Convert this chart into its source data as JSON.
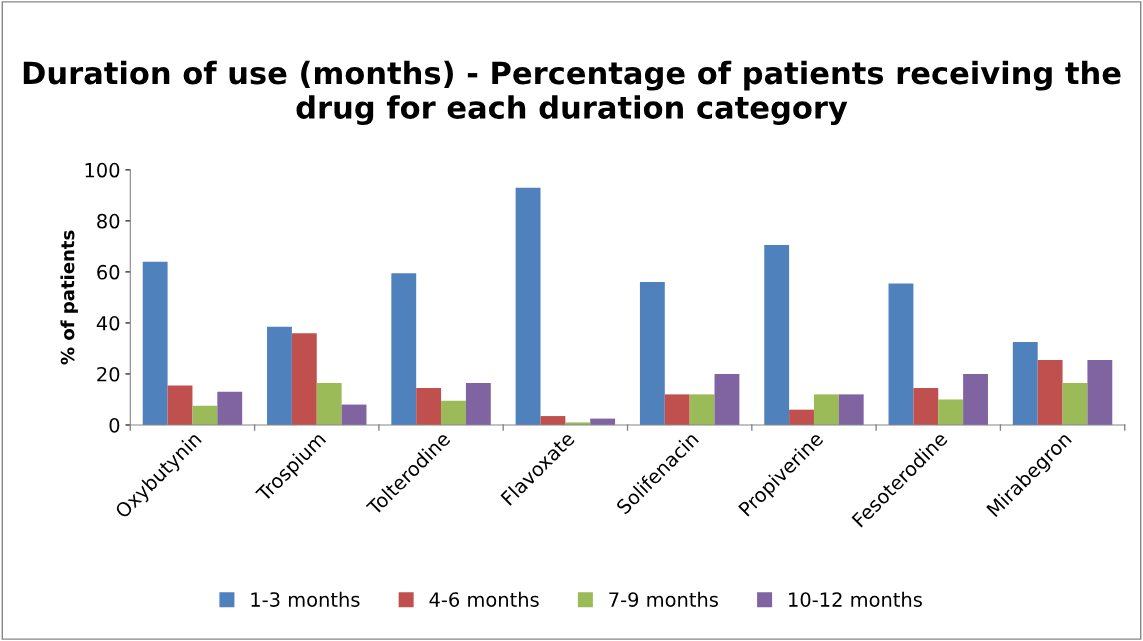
{
  "chart_data": {
    "type": "bar",
    "title": "Duration of use (months) - Percentage of patients receiving the drug for each duration category",
    "ylabel": "% of patients",
    "categories": [
      "Oxybutynin",
      "Trospium",
      "Tolterodine",
      "Flavoxate",
      "Solifenacin",
      "Propiverine",
      "Fesoterodine",
      "Mirabegron"
    ],
    "series": [
      {
        "name": "1-3 months",
        "color": "#4f81bd",
        "values": [
          64,
          38.5,
          59.5,
          93,
          56,
          70.5,
          55.5,
          32.5
        ]
      },
      {
        "name": "4-6 months",
        "color": "#c0504d",
        "values": [
          15.5,
          36,
          14.5,
          3.5,
          12,
          6,
          14.5,
          25.5
        ]
      },
      {
        "name": "7-9 months",
        "color": "#9bbb59",
        "values": [
          7.5,
          16.5,
          9.5,
          1,
          12,
          12,
          10,
          16.5
        ]
      },
      {
        "name": "10-12 months",
        "color": "#8064a2",
        "values": [
          13,
          8,
          16.5,
          2.5,
          20,
          12,
          20,
          25.5
        ]
      }
    ],
    "ylim": [
      0,
      100
    ],
    "yticks": [
      0,
      20,
      40,
      60,
      80,
      100
    ],
    "grid": false,
    "legend": "bottom"
  }
}
